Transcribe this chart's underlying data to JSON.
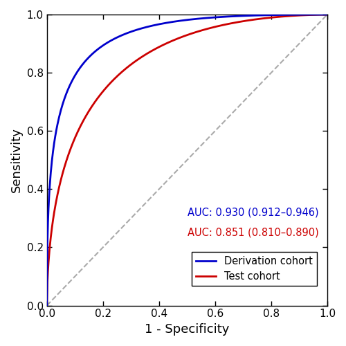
{
  "title": "",
  "xlabel": "1 - Specificity",
  "ylabel": "Sensitivity",
  "xlim": [
    0.0,
    1.0
  ],
  "ylim": [
    0.0,
    1.0
  ],
  "xticks": [
    0.0,
    0.2,
    0.4,
    0.6,
    0.8,
    1.0
  ],
  "yticks": [
    0.0,
    0.2,
    0.4,
    0.6,
    0.8,
    1.0
  ],
  "blue_color": "#0000cc",
  "red_color": "#cc0000",
  "diag_color": "#aaaaaa",
  "blue_auc": 0.93,
  "red_auc": 0.851,
  "blue_label": "Derivation cohort",
  "red_label": "Test cohort",
  "blue_auc_text": "AUC: 0.930 (0.912–0.946)",
  "red_auc_text": "AUC: 0.851 (0.810–0.890)",
  "figsize": [
    5.0,
    5.0
  ],
  "dpi": 100
}
